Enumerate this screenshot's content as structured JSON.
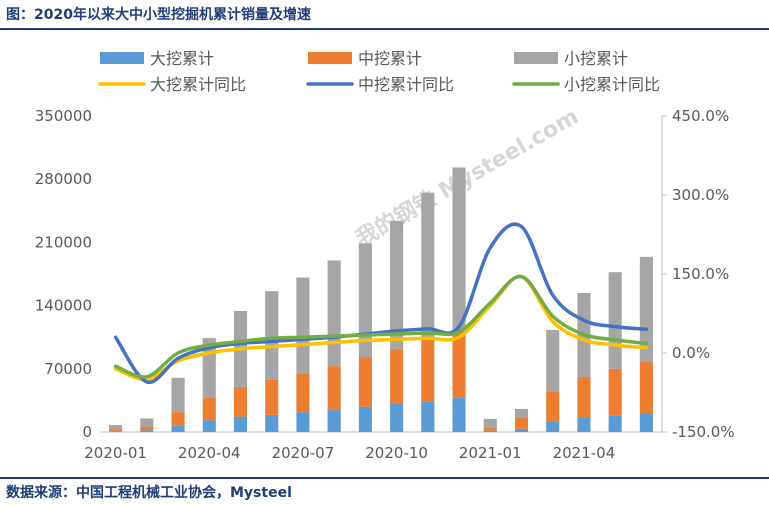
{
  "header": {
    "title": "图：2020年以来大中小型挖掘机累计销量及增速"
  },
  "footer": {
    "source": "数据来源：中国工程机械工业协会，Mysteel"
  },
  "watermark": {
    "text": "我的钢铁 Mysteel.com"
  },
  "colors": {
    "large": "#5b9bd5",
    "medium": "#ed7d31",
    "small": "#a5a5a5",
    "large_yoy": "#ffc000",
    "medium_yoy": "#4472c4",
    "small_yoy": "#70ad47",
    "axis": "#bfbfbf",
    "text": "#595959"
  },
  "chart_data": {
    "type": "bar",
    "stacked": true,
    "categories": [
      "2020-01",
      "2020-02",
      "2020-03",
      "2020-04",
      "2020-05",
      "2020-06",
      "2020-07",
      "2020-08",
      "2020-09",
      "2020-10",
      "2020-11",
      "2020-12",
      "2021-01",
      "2021-02",
      "2021-03",
      "2021-04",
      "2021-05",
      "2021-06"
    ],
    "x_tick_labels": [
      "2020-01",
      "2020-04",
      "2020-07",
      "2020-10",
      "2021-01",
      "2021-04"
    ],
    "series": [
      {
        "name": "大挖累计",
        "kind": "bar",
        "axis": "left",
        "values": [
          700,
          2000,
          7000,
          13000,
          17000,
          19000,
          22000,
          25000,
          28000,
          31000,
          34000,
          38000,
          1500,
          3500,
          12000,
          16000,
          18000,
          21000
        ]
      },
      {
        "name": "中挖累计",
        "kind": "bar",
        "axis": "left",
        "values": [
          2000,
          4000,
          15000,
          25000,
          33000,
          39000,
          43000,
          48000,
          55000,
          61000,
          68000,
          74000,
          3000,
          12000,
          33000,
          45000,
          52000,
          57000
        ]
      },
      {
        "name": "小挖累计",
        "kind": "bar",
        "axis": "left",
        "values": [
          5000,
          9000,
          38000,
          66000,
          84000,
          98000,
          106000,
          117000,
          126000,
          142000,
          163000,
          181000,
          10000,
          10000,
          68000,
          93000,
          107000,
          116000
        ]
      },
      {
        "name": "大挖累计同比",
        "kind": "line",
        "axis": "right",
        "values": [
          -30,
          -50,
          -15,
          0,
          8,
          12,
          16,
          20,
          24,
          26,
          28,
          30,
          90,
          145,
          60,
          25,
          15,
          10
        ]
      },
      {
        "name": "中挖累计同比",
        "kind": "line",
        "axis": "right",
        "values": [
          30,
          -55,
          -10,
          10,
          18,
          22,
          26,
          30,
          36,
          42,
          46,
          50,
          200,
          240,
          110,
          62,
          50,
          45
        ]
      },
      {
        "name": "小挖累计同比",
        "kind": "line",
        "axis": "right",
        "values": [
          -25,
          -45,
          0,
          15,
          22,
          28,
          30,
          32,
          34,
          36,
          38,
          40,
          95,
          145,
          70,
          35,
          25,
          18
        ]
      }
    ],
    "y_left": {
      "min": 0,
      "max": 350000,
      "ticks": [
        "0",
        "70000",
        "140000",
        "210000",
        "280000",
        "350000"
      ]
    },
    "y_right": {
      "min": -150,
      "max": 450,
      "ticks": [
        "-150.0%",
        "0.0%",
        "150.0%",
        "300.0%",
        "450.0%"
      ]
    },
    "legend": {
      "placement": "top",
      "items": [
        {
          "label": "大挖累计",
          "kind": "bar"
        },
        {
          "label": "中挖累计",
          "kind": "bar"
        },
        {
          "label": "小挖累计",
          "kind": "bar"
        },
        {
          "label": "大挖累计同比",
          "kind": "line"
        },
        {
          "label": "中挖累计同比",
          "kind": "line"
        },
        {
          "label": "小挖累计同比",
          "kind": "line"
        }
      ]
    }
  }
}
